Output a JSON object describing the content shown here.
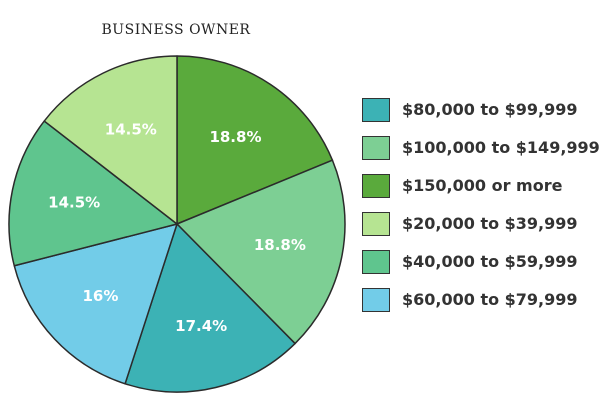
{
  "chart_data": {
    "type": "pie",
    "title": "BUSINESS OWNER",
    "start": "top",
    "direction": "clockwise",
    "legend_position": "right",
    "slices": [
      {
        "name": "$150,000 or more",
        "value": 18.8,
        "label": "18.8%",
        "color": "#5aaa3c"
      },
      {
        "name": "$100,000 to $149,999",
        "value": 18.8,
        "label": "18.8%",
        "color": "#7dcf94"
      },
      {
        "name": "$80,000 to $99,999",
        "value": 17.4,
        "label": "17.4%",
        "color": "#3cb2b5"
      },
      {
        "name": "$60,000 to $79,999",
        "value": 16,
        "label": "16%",
        "color": "#72cce8"
      },
      {
        "name": "$40,000 to $59,999",
        "value": 14.5,
        "label": "14.5%",
        "color": "#5fc58e"
      },
      {
        "name": "$20,000 to $39,999",
        "value": 14.5,
        "label": "14.5%",
        "color": "#b6e492"
      }
    ],
    "legend": [
      {
        "label": "$80,000 to $99,999",
        "color": "#3cb2b5"
      },
      {
        "label": "$100,000 to $149,999",
        "color": "#7dcf94"
      },
      {
        "label": "$150,000 or more",
        "color": "#5aaa3c"
      },
      {
        "label": "$20,000 to $39,999",
        "color": "#b6e492"
      },
      {
        "label": "$40,000 to $59,999",
        "color": "#5fc58e"
      },
      {
        "label": "$60,000 to $79,999",
        "color": "#72cce8"
      }
    ]
  }
}
